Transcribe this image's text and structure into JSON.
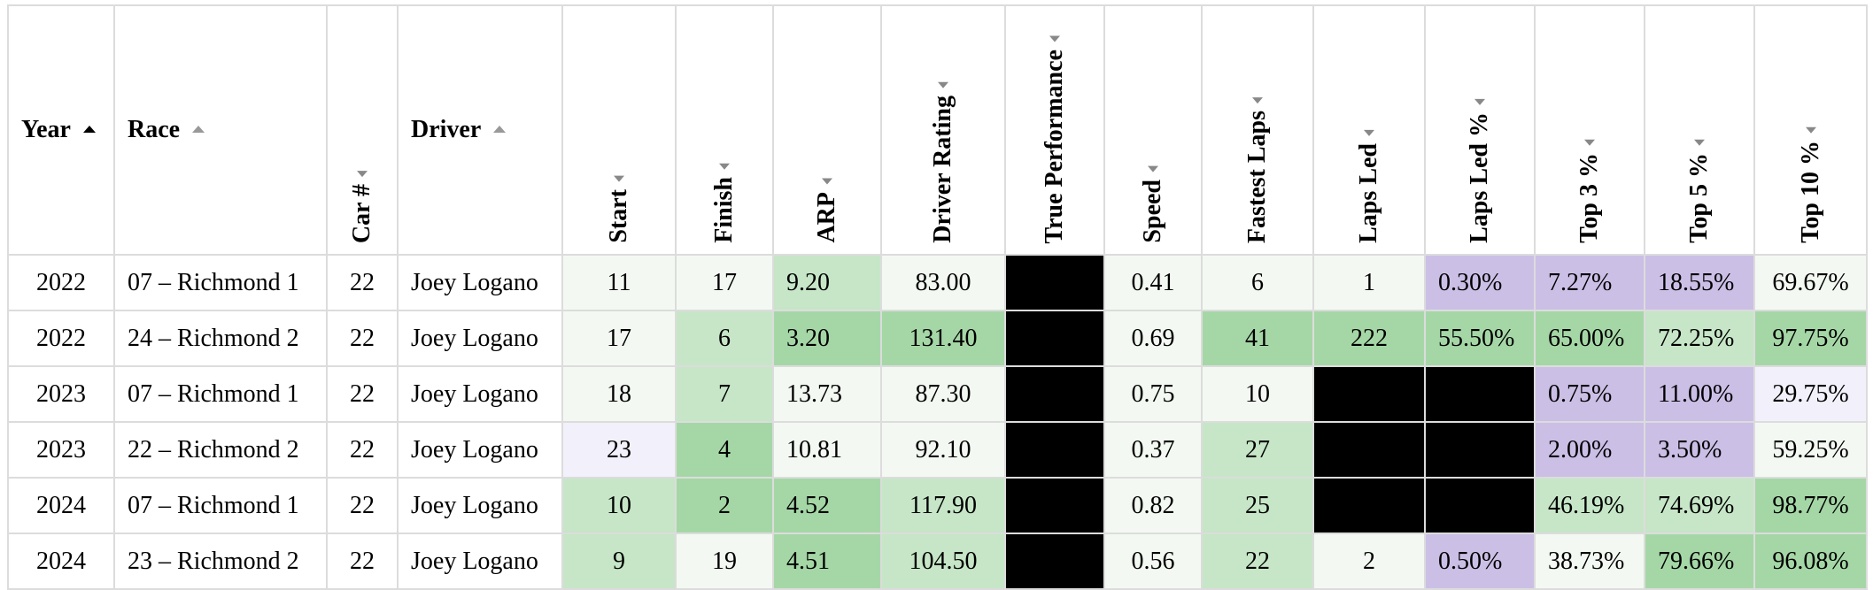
{
  "columns": [
    {
      "label": "Year",
      "orientation": "horizontal",
      "sort": "ascending-active"
    },
    {
      "label": "Race",
      "orientation": "horizontal",
      "sort": "idle"
    },
    {
      "label": "Car #",
      "orientation": "vertical"
    },
    {
      "label": "Driver",
      "orientation": "horizontal",
      "sort": "idle"
    },
    {
      "label": "Start",
      "orientation": "vertical"
    },
    {
      "label": "Finish",
      "orientation": "vertical"
    },
    {
      "label": "ARP",
      "orientation": "vertical"
    },
    {
      "label": "Driver Rating",
      "orientation": "vertical"
    },
    {
      "label": "True Performance",
      "orientation": "vertical"
    },
    {
      "label": "Speed",
      "orientation": "vertical"
    },
    {
      "label": "Fastest Laps",
      "orientation": "vertical"
    },
    {
      "label": "Laps Led",
      "orientation": "vertical"
    },
    {
      "label": "Laps Led %",
      "orientation": "vertical"
    },
    {
      "label": "Top 3 %",
      "orientation": "vertical"
    },
    {
      "label": "Top 5 %",
      "orientation": "vertical"
    },
    {
      "label": "Top 10 %",
      "orientation": "vertical"
    }
  ],
  "cell_colors": {
    "light_green": "#f3f9f2",
    "mid_green": "#c6e6c7",
    "green": "#a5d7a6",
    "purple": "#cbbfe6",
    "light_purple": "#f2f0fa",
    "black": "#000000",
    "white": "#ffffff"
  },
  "rows": [
    {
      "cells": [
        {
          "text": "2022",
          "color": "white"
        },
        {
          "text": "07 – Richmond 1",
          "color": "white"
        },
        {
          "text": "22",
          "color": "white"
        },
        {
          "text": "Joey Logano",
          "color": "white"
        },
        {
          "text": "11",
          "color": "light_green"
        },
        {
          "text": "17",
          "color": "light_green"
        },
        {
          "text": "9.20",
          "color": "mid_green"
        },
        {
          "text": "83.00",
          "color": "light_green"
        },
        {
          "text": "",
          "color": "black"
        },
        {
          "text": "0.41",
          "color": "light_green"
        },
        {
          "text": "6",
          "color": "light_green"
        },
        {
          "text": "1",
          "color": "light_green"
        },
        {
          "text": "0.30%",
          "color": "purple"
        },
        {
          "text": "7.27%",
          "color": "purple"
        },
        {
          "text": "18.55%",
          "color": "purple"
        },
        {
          "text": "69.67%",
          "color": "light_green"
        }
      ]
    },
    {
      "cells": [
        {
          "text": "2022",
          "color": "white"
        },
        {
          "text": "24 – Richmond 2",
          "color": "white"
        },
        {
          "text": "22",
          "color": "white"
        },
        {
          "text": "Joey Logano",
          "color": "white"
        },
        {
          "text": "17",
          "color": "light_green"
        },
        {
          "text": "6",
          "color": "mid_green"
        },
        {
          "text": "3.20",
          "color": "green"
        },
        {
          "text": "131.40",
          "color": "green"
        },
        {
          "text": "",
          "color": "black"
        },
        {
          "text": "0.69",
          "color": "light_green"
        },
        {
          "text": "41",
          "color": "green"
        },
        {
          "text": "222",
          "color": "green"
        },
        {
          "text": "55.50%",
          "color": "green"
        },
        {
          "text": "65.00%",
          "color": "green"
        },
        {
          "text": "72.25%",
          "color": "mid_green"
        },
        {
          "text": "97.75%",
          "color": "green"
        }
      ]
    },
    {
      "cells": [
        {
          "text": "2023",
          "color": "white"
        },
        {
          "text": "07 – Richmond 1",
          "color": "white"
        },
        {
          "text": "22",
          "color": "white"
        },
        {
          "text": "Joey Logano",
          "color": "white"
        },
        {
          "text": "18",
          "color": "light_green"
        },
        {
          "text": "7",
          "color": "mid_green"
        },
        {
          "text": "13.73",
          "color": "light_green"
        },
        {
          "text": "87.30",
          "color": "light_green"
        },
        {
          "text": "",
          "color": "black"
        },
        {
          "text": "0.75",
          "color": "light_green"
        },
        {
          "text": "10",
          "color": "light_green"
        },
        {
          "text": "",
          "color": "black"
        },
        {
          "text": "",
          "color": "black"
        },
        {
          "text": "0.75%",
          "color": "purple"
        },
        {
          "text": "11.00%",
          "color": "purple"
        },
        {
          "text": "29.75%",
          "color": "light_purple"
        }
      ]
    },
    {
      "cells": [
        {
          "text": "2023",
          "color": "white"
        },
        {
          "text": "22 – Richmond 2",
          "color": "white"
        },
        {
          "text": "22",
          "color": "white"
        },
        {
          "text": "Joey Logano",
          "color": "white"
        },
        {
          "text": "23",
          "color": "light_purple"
        },
        {
          "text": "4",
          "color": "green"
        },
        {
          "text": "10.81",
          "color": "light_green"
        },
        {
          "text": "92.10",
          "color": "light_green"
        },
        {
          "text": "",
          "color": "black"
        },
        {
          "text": "0.37",
          "color": "light_green"
        },
        {
          "text": "27",
          "color": "mid_green"
        },
        {
          "text": "",
          "color": "black"
        },
        {
          "text": "",
          "color": "black"
        },
        {
          "text": "2.00%",
          "color": "purple"
        },
        {
          "text": "3.50%",
          "color": "purple"
        },
        {
          "text": "59.25%",
          "color": "light_green"
        }
      ]
    },
    {
      "cells": [
        {
          "text": "2024",
          "color": "white"
        },
        {
          "text": "07 – Richmond 1",
          "color": "white"
        },
        {
          "text": "22",
          "color": "white"
        },
        {
          "text": "Joey Logano",
          "color": "white"
        },
        {
          "text": "10",
          "color": "mid_green"
        },
        {
          "text": "2",
          "color": "green"
        },
        {
          "text": "4.52",
          "color": "green"
        },
        {
          "text": "117.90",
          "color": "mid_green"
        },
        {
          "text": "",
          "color": "black"
        },
        {
          "text": "0.82",
          "color": "light_green"
        },
        {
          "text": "25",
          "color": "mid_green"
        },
        {
          "text": "",
          "color": "black"
        },
        {
          "text": "",
          "color": "black"
        },
        {
          "text": "46.19%",
          "color": "mid_green"
        },
        {
          "text": "74.69%",
          "color": "mid_green"
        },
        {
          "text": "98.77%",
          "color": "green"
        }
      ]
    },
    {
      "cells": [
        {
          "text": "2024",
          "color": "white"
        },
        {
          "text": "23 – Richmond 2",
          "color": "white"
        },
        {
          "text": "22",
          "color": "white"
        },
        {
          "text": "Joey Logano",
          "color": "white"
        },
        {
          "text": "9",
          "color": "mid_green"
        },
        {
          "text": "19",
          "color": "light_green"
        },
        {
          "text": "4.51",
          "color": "green"
        },
        {
          "text": "104.50",
          "color": "mid_green"
        },
        {
          "text": "",
          "color": "black"
        },
        {
          "text": "0.56",
          "color": "light_green"
        },
        {
          "text": "22",
          "color": "mid_green"
        },
        {
          "text": "2",
          "color": "light_green"
        },
        {
          "text": "0.50%",
          "color": "purple"
        },
        {
          "text": "38.73%",
          "color": "light_green"
        },
        {
          "text": "79.66%",
          "color": "green"
        },
        {
          "text": "96.08%",
          "color": "green"
        }
      ]
    }
  ]
}
